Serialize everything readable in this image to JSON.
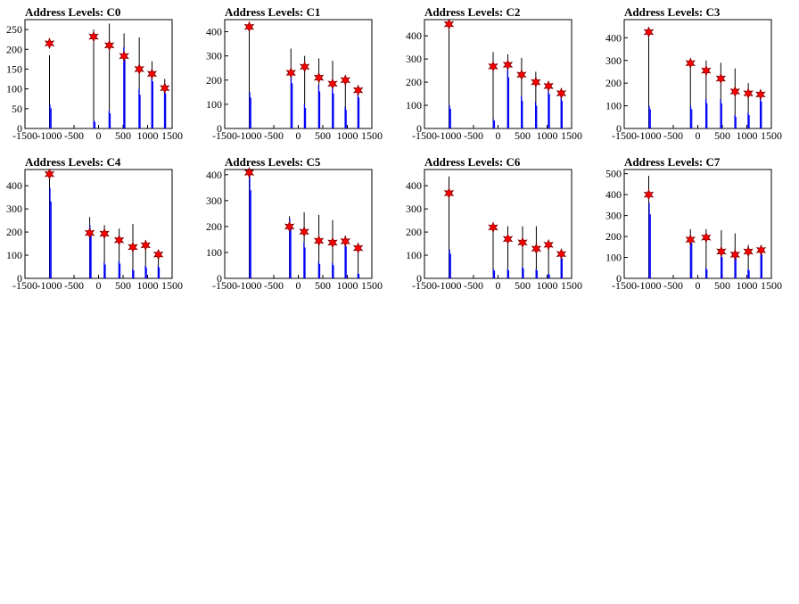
{
  "chart_data": [
    {
      "type": "bar",
      "title": "Address Levels: C0",
      "xlim": [
        -1500,
        1500
      ],
      "ylim": [
        0,
        275
      ],
      "xticks": [
        -1500,
        -1000,
        -500,
        0,
        500,
        1000,
        1500
      ],
      "yticks": [
        0,
        50,
        100,
        150,
        200,
        250
      ],
      "xtick_labels": [
        "-1500",
        "-1000",
        "-500",
        "0",
        "500",
        "1000",
        "1500"
      ],
      "ytick_labels": [
        "0",
        "50",
        "100",
        "150",
        "200",
        "250"
      ],
      "series": [
        {
          "color": "#000000",
          "values": [
            {
              "x": -1000,
              "y": 185
            },
            {
              "x": -100,
              "y": 250
            },
            {
              "x": 220,
              "y": 265
            },
            {
              "x": 520,
              "y": 240
            },
            {
              "x": 830,
              "y": 230
            },
            {
              "x": 1090,
              "y": 170
            },
            {
              "x": 1350,
              "y": 125
            }
          ]
        },
        {
          "color": "#0000ff",
          "values": [
            {
              "x": -990,
              "y": 60
            },
            {
              "x": -95,
              "y": 20
            },
            {
              "x": 215,
              "y": 45
            },
            {
              "x": 515,
              "y": 205
            },
            {
              "x": 825,
              "y": 100
            },
            {
              "x": 1085,
              "y": 140
            },
            {
              "x": 1345,
              "y": 105
            }
          ]
        }
      ],
      "peaks": [
        {
          "x": -1000,
          "y": 215
        },
        {
          "x": -100,
          "y": 232
        },
        {
          "x": 220,
          "y": 210
        },
        {
          "x": 520,
          "y": 183
        },
        {
          "x": 830,
          "y": 150
        },
        {
          "x": 1090,
          "y": 138
        },
        {
          "x": 1350,
          "y": 102
        }
      ]
    },
    {
      "type": "bar",
      "title": "Address Levels: C1",
      "xlim": [
        -1500,
        1500
      ],
      "ylim": [
        0,
        450
      ],
      "xticks": [
        -1500,
        -1000,
        -500,
        0,
        500,
        1000,
        1500
      ],
      "yticks": [
        0,
        100,
        200,
        300,
        400
      ],
      "xtick_labels": [
        "-1500",
        "-1000",
        "-500",
        "0",
        "500",
        "1000",
        "1500"
      ],
      "ytick_labels": [
        "0",
        "100",
        "200",
        "300",
        "400"
      ],
      "series": [
        {
          "color": "#000000",
          "values": [
            {
              "x": -1000,
              "y": 440
            },
            {
              "x": -150,
              "y": 330
            },
            {
              "x": 130,
              "y": 300
            },
            {
              "x": 420,
              "y": 290
            },
            {
              "x": 700,
              "y": 280
            },
            {
              "x": 960,
              "y": 210
            },
            {
              "x": 1220,
              "y": 165
            }
          ]
        },
        {
          "color": "#0000ff",
          "values": [
            {
              "x": -990,
              "y": 150
            },
            {
              "x": -145,
              "y": 220
            },
            {
              "x": 125,
              "y": 100
            },
            {
              "x": 415,
              "y": 180
            },
            {
              "x": 695,
              "y": 170
            },
            {
              "x": 955,
              "y": 90
            },
            {
              "x": 1215,
              "y": 150
            }
          ]
        }
      ],
      "peaks": [
        {
          "x": -1000,
          "y": 420
        },
        {
          "x": -150,
          "y": 230
        },
        {
          "x": 130,
          "y": 255
        },
        {
          "x": 420,
          "y": 210
        },
        {
          "x": 700,
          "y": 185
        },
        {
          "x": 960,
          "y": 200
        },
        {
          "x": 1220,
          "y": 158
        }
      ]
    },
    {
      "type": "bar",
      "title": "Address Levels: C2",
      "xlim": [
        -1500,
        1500
      ],
      "ylim": [
        0,
        470
      ],
      "xticks": [
        -1500,
        -1000,
        -500,
        0,
        500,
        1000,
        1500
      ],
      "yticks": [
        0,
        100,
        200,
        300,
        400
      ],
      "xtick_labels": [
        "-1500",
        "-1000",
        "-500",
        "0",
        "500",
        "1000",
        "1500"
      ],
      "ytick_labels": [
        "0",
        "100",
        "200",
        "300",
        "400"
      ],
      "series": [
        {
          "color": "#000000",
          "values": [
            {
              "x": -1000,
              "y": 465
            },
            {
              "x": -100,
              "y": 330
            },
            {
              "x": 200,
              "y": 320
            },
            {
              "x": 480,
              "y": 305
            },
            {
              "x": 770,
              "y": 245
            },
            {
              "x": 1030,
              "y": 195
            },
            {
              "x": 1290,
              "y": 165
            }
          ]
        },
        {
          "color": "#0000ff",
          "values": [
            {
              "x": -990,
              "y": 100
            },
            {
              "x": -95,
              "y": 40
            },
            {
              "x": 195,
              "y": 260
            },
            {
              "x": 475,
              "y": 140
            },
            {
              "x": 765,
              "y": 115
            },
            {
              "x": 1025,
              "y": 175
            },
            {
              "x": 1285,
              "y": 140
            }
          ]
        }
      ],
      "peaks": [
        {
          "x": -1000,
          "y": 450
        },
        {
          "x": -100,
          "y": 268
        },
        {
          "x": 200,
          "y": 275
        },
        {
          "x": 480,
          "y": 232
        },
        {
          "x": 770,
          "y": 200
        },
        {
          "x": 1030,
          "y": 183
        },
        {
          "x": 1290,
          "y": 152
        }
      ]
    },
    {
      "type": "bar",
      "title": "Address Levels: C3",
      "xlim": [
        -1500,
        1500
      ],
      "ylim": [
        0,
        480
      ],
      "xticks": [
        -1500,
        -1000,
        -500,
        0,
        500,
        1000,
        1500
      ],
      "yticks": [
        0,
        100,
        200,
        300,
        400
      ],
      "xtick_labels": [
        "-1500",
        "-1000",
        "-500",
        "0",
        "500",
        "1000",
        "1500"
      ],
      "ytick_labels": [
        "0",
        "100",
        "200",
        "300",
        "400"
      ],
      "series": [
        {
          "color": "#000000",
          "values": [
            {
              "x": -1000,
              "y": 440
            },
            {
              "x": -150,
              "y": 300
            },
            {
              "x": 170,
              "y": 300
            },
            {
              "x": 470,
              "y": 290
            },
            {
              "x": 760,
              "y": 265
            },
            {
              "x": 1030,
              "y": 200
            },
            {
              "x": 1280,
              "y": 160
            }
          ]
        },
        {
          "color": "#0000ff",
          "values": [
            {
              "x": -990,
              "y": 100
            },
            {
              "x": -145,
              "y": 100
            },
            {
              "x": 165,
              "y": 130
            },
            {
              "x": 465,
              "y": 130
            },
            {
              "x": 755,
              "y": 60
            },
            {
              "x": 1025,
              "y": 70
            },
            {
              "x": 1275,
              "y": 140
            }
          ]
        }
      ],
      "peaks": [
        {
          "x": -1000,
          "y": 425
        },
        {
          "x": -150,
          "y": 288
        },
        {
          "x": 170,
          "y": 255
        },
        {
          "x": 470,
          "y": 220
        },
        {
          "x": 760,
          "y": 163
        },
        {
          "x": 1030,
          "y": 155
        },
        {
          "x": 1280,
          "y": 150
        }
      ]
    },
    {
      "type": "bar",
      "title": "Address Levels: C4",
      "xlim": [
        -1500,
        1500
      ],
      "ylim": [
        0,
        470
      ],
      "xticks": [
        -1500,
        -1000,
        -500,
        0,
        500,
        1000,
        1500
      ],
      "yticks": [
        0,
        100,
        200,
        300,
        400
      ],
      "xtick_labels": [
        "-1500",
        "-1000",
        "-500",
        "0",
        "500",
        "1000",
        "1500"
      ],
      "ytick_labels": [
        "0",
        "100",
        "200",
        "300",
        "400"
      ],
      "series": [
        {
          "color": "#000000",
          "values": [
            {
              "x": -1000,
              "y": 450
            },
            {
              "x": -180,
              "y": 265
            },
            {
              "x": 120,
              "y": 230
            },
            {
              "x": 420,
              "y": 215
            },
            {
              "x": 700,
              "y": 235
            },
            {
              "x": 960,
              "y": 165
            },
            {
              "x": 1220,
              "y": 120
            }
          ]
        },
        {
          "color": "#0000ff",
          "values": [
            {
              "x": -990,
              "y": 390
            },
            {
              "x": -175,
              "y": 230
            },
            {
              "x": 115,
              "y": 70
            },
            {
              "x": 415,
              "y": 75
            },
            {
              "x": 695,
              "y": 40
            },
            {
              "x": 955,
              "y": 55
            },
            {
              "x": 1215,
              "y": 55
            }
          ]
        }
      ],
      "peaks": [
        {
          "x": -1000,
          "y": 450
        },
        {
          "x": -180,
          "y": 196
        },
        {
          "x": 120,
          "y": 193
        },
        {
          "x": 420,
          "y": 165
        },
        {
          "x": 700,
          "y": 135
        },
        {
          "x": 960,
          "y": 143
        },
        {
          "x": 1220,
          "y": 103
        }
      ]
    },
    {
      "type": "bar",
      "title": "Address Levels: C5",
      "xlim": [
        -1500,
        1500
      ],
      "ylim": [
        0,
        420
      ],
      "xticks": [
        -1500,
        -1000,
        -500,
        0,
        500,
        1000,
        1500
      ],
      "yticks": [
        0,
        100,
        200,
        300,
        400
      ],
      "xtick_labels": [
        "-1500",
        "-1000",
        "-500",
        "0",
        "500",
        "1000",
        "1500"
      ],
      "ytick_labels": [
        "0",
        "100",
        "200",
        "300",
        "400"
      ],
      "series": [
        {
          "color": "#000000",
          "values": [
            {
              "x": -1000,
              "y": 415
            },
            {
              "x": -180,
              "y": 240
            },
            {
              "x": 120,
              "y": 255
            },
            {
              "x": 420,
              "y": 245
            },
            {
              "x": 700,
              "y": 225
            },
            {
              "x": 960,
              "y": 165
            },
            {
              "x": 1220,
              "y": 120
            }
          ]
        },
        {
          "color": "#0000ff",
          "values": [
            {
              "x": -990,
              "y": 400
            },
            {
              "x": -175,
              "y": 230
            },
            {
              "x": 115,
              "y": 140
            },
            {
              "x": 415,
              "y": 65
            },
            {
              "x": 695,
              "y": 60
            },
            {
              "x": 955,
              "y": 145
            },
            {
              "x": 1215,
              "y": 20
            }
          ]
        }
      ],
      "peaks": [
        {
          "x": -1000,
          "y": 408
        },
        {
          "x": -180,
          "y": 200
        },
        {
          "x": 120,
          "y": 180
        },
        {
          "x": 420,
          "y": 145
        },
        {
          "x": 700,
          "y": 138
        },
        {
          "x": 960,
          "y": 143
        },
        {
          "x": 1220,
          "y": 117
        }
      ]
    },
    {
      "type": "bar",
      "title": "Address Levels: C6",
      "xlim": [
        -1500,
        1500
      ],
      "ylim": [
        0,
        470
      ],
      "xticks": [
        -1500,
        -1000,
        -500,
        0,
        500,
        1000,
        1500
      ],
      "yticks": [
        0,
        100,
        200,
        300,
        400
      ],
      "xtick_labels": [
        "-1500",
        "-1000",
        "-500",
        "0",
        "500",
        "1000",
        "1500"
      ],
      "ytick_labels": [
        "0",
        "100",
        "200",
        "300",
        "400"
      ],
      "series": [
        {
          "color": "#000000",
          "values": [
            {
              "x": -1000,
              "y": 440
            },
            {
              "x": -100,
              "y": 225
            },
            {
              "x": 200,
              "y": 225
            },
            {
              "x": 500,
              "y": 225
            },
            {
              "x": 780,
              "y": 225
            },
            {
              "x": 1030,
              "y": 160
            },
            {
              "x": 1290,
              "y": 115
            }
          ]
        },
        {
          "color": "#0000ff",
          "values": [
            {
              "x": -990,
              "y": 125
            },
            {
              "x": -95,
              "y": 40
            },
            {
              "x": 195,
              "y": 40
            },
            {
              "x": 495,
              "y": 50
            },
            {
              "x": 775,
              "y": 40
            },
            {
              "x": 1025,
              "y": 20
            },
            {
              "x": 1285,
              "y": 100
            }
          ]
        }
      ],
      "peaks": [
        {
          "x": -1000,
          "y": 368
        },
        {
          "x": -100,
          "y": 220
        },
        {
          "x": 200,
          "y": 170
        },
        {
          "x": 500,
          "y": 155
        },
        {
          "x": 780,
          "y": 128
        },
        {
          "x": 1030,
          "y": 145
        },
        {
          "x": 1290,
          "y": 105
        }
      ]
    },
    {
      "type": "bar",
      "title": "Address Levels: C7",
      "xlim": [
        -1500,
        1500
      ],
      "ylim": [
        0,
        520
      ],
      "xticks": [
        -1500,
        -1000,
        -500,
        0,
        500,
        1000,
        1500
      ],
      "yticks": [
        0,
        100,
        200,
        300,
        400,
        500
      ],
      "xtick_labels": [
        "-1500",
        "-1000",
        "-500",
        "0",
        "500",
        "1000",
        "1500"
      ],
      "ytick_labels": [
        "0",
        "100",
        "200",
        "300",
        "400",
        "500"
      ],
      "series": [
        {
          "color": "#000000",
          "values": [
            {
              "x": -1000,
              "y": 490
            },
            {
              "x": -150,
              "y": 235
            },
            {
              "x": 170,
              "y": 235
            },
            {
              "x": 480,
              "y": 230
            },
            {
              "x": 760,
              "y": 215
            },
            {
              "x": 1030,
              "y": 160
            },
            {
              "x": 1290,
              "y": 155
            }
          ]
        },
        {
          "color": "#0000ff",
          "values": [
            {
              "x": -990,
              "y": 360
            },
            {
              "x": -145,
              "y": 200
            },
            {
              "x": 165,
              "y": 50
            },
            {
              "x": 475,
              "y": 120
            },
            {
              "x": 755,
              "y": 130
            },
            {
              "x": 1025,
              "y": 45
            },
            {
              "x": 1285,
              "y": 135
            }
          ]
        }
      ],
      "peaks": [
        {
          "x": -1000,
          "y": 400
        },
        {
          "x": -150,
          "y": 185
        },
        {
          "x": 170,
          "y": 195
        },
        {
          "x": 480,
          "y": 128
        },
        {
          "x": 760,
          "y": 113
        },
        {
          "x": 1030,
          "y": 128
        },
        {
          "x": 1290,
          "y": 135
        }
      ]
    }
  ]
}
